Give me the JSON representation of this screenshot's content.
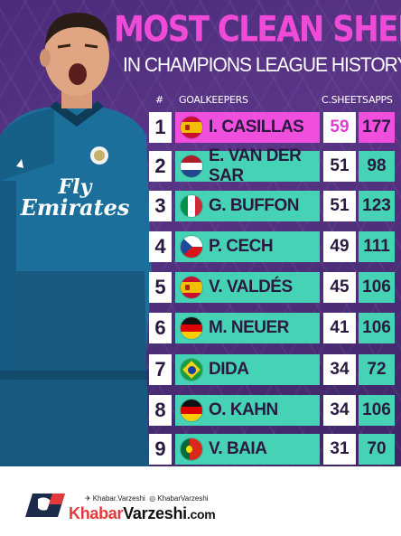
{
  "title": "MOST CLEAN SHEETS",
  "subtitle": "IN CHAMPIONS LEAGUE HISTORY",
  "headers": {
    "rank": "#",
    "goalkeepers": "GOALKEEPERS",
    "clean_sheets": "C.SHEETS",
    "apps": "APPS"
  },
  "shirt": {
    "sponsor_line1": "Fly",
    "sponsor_line2": "Emirates",
    "brand": "adidas"
  },
  "colors": {
    "accent_pink": "#ef4fdc",
    "row_teal": "#46d2b4",
    "background_purple": "#4b2c7a"
  },
  "rows": [
    {
      "rank": "1",
      "name": "I. CASILLAS",
      "clean_sheets": "59",
      "apps": "177",
      "flag": "spain-flag-icon"
    },
    {
      "rank": "2",
      "name": "E. VAN DER SAR",
      "clean_sheets": "51",
      "apps": "98",
      "flag": "netherlands-flag-icon"
    },
    {
      "rank": "3",
      "name": "G. BUFFON",
      "clean_sheets": "51",
      "apps": "123",
      "flag": "italy-flag-icon"
    },
    {
      "rank": "4",
      "name": "P. CECH",
      "clean_sheets": "49",
      "apps": "111",
      "flag": "czech-flag-icon"
    },
    {
      "rank": "5",
      "name": "V. VALDÉS",
      "clean_sheets": "45",
      "apps": "106",
      "flag": "spain-flag-icon"
    },
    {
      "rank": "6",
      "name": "M. NEUER",
      "clean_sheets": "41",
      "apps": "106",
      "flag": "germany-flag-icon"
    },
    {
      "rank": "7",
      "name": "DIDA",
      "clean_sheets": "34",
      "apps": "72",
      "flag": "brazil-flag-icon"
    },
    {
      "rank": "8",
      "name": "O. KAHN",
      "clean_sheets": "34",
      "apps": "106",
      "flag": "germany-flag-icon"
    },
    {
      "rank": "9",
      "name": "V. BAIA",
      "clean_sheets": "31",
      "apps": "70",
      "flag": "portugal-flag-icon"
    }
  ],
  "footer": {
    "social_twitter": "Khabar.Varzeshi",
    "social_instagram": "KhabarVarzeshi",
    "brand_part1": "Khabar",
    "brand_part2": "Varzeshi",
    "brand_domain": ".com"
  }
}
